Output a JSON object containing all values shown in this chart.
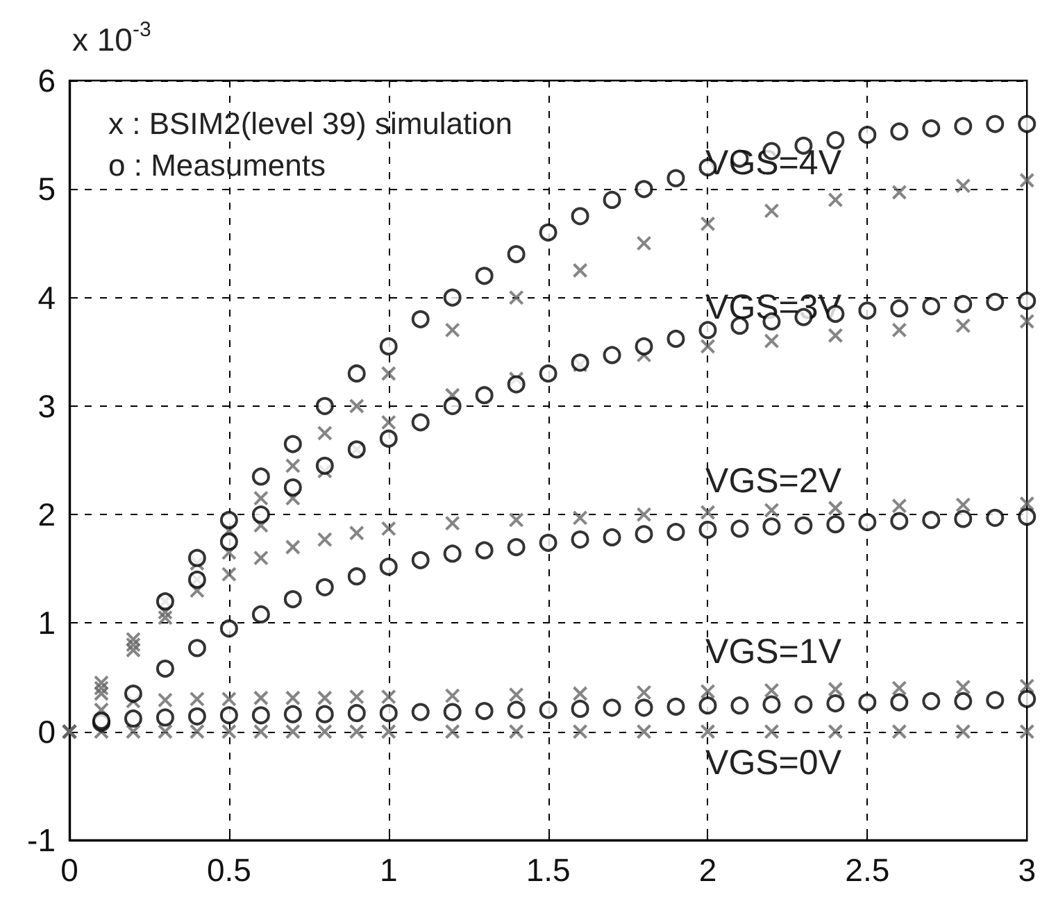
{
  "chart_data": {
    "type": "scatter",
    "xlim": [
      0,
      3
    ],
    "xticks": [
      0,
      0.5,
      1,
      1.5,
      2,
      2.5,
      3
    ],
    "ylim": [
      -1,
      6
    ],
    "yticks": [
      -1,
      0,
      1,
      2,
      3,
      4,
      5,
      6
    ],
    "grid": true,
    "annotations": [
      "x 10$^{-3}$",
      "x : BSIM2(level 39) simulation",
      "o : Measuments",
      "VGS=4V",
      "VGS=3V",
      "VGS=2V",
      "VGS=1V",
      "VGS=0V"
    ],
    "series": [
      {
        "marker": "cross",
        "color": "#666666",
        "x": [
          0,
          0.1,
          0.2,
          0.3,
          0.4,
          0.5,
          0.6,
          0.7,
          0.8,
          0.9,
          1.0,
          1.2,
          1.4,
          1.6,
          1.8,
          2.0,
          2.2,
          2.4,
          2.6,
          2.8,
          3.0
        ],
        "values": [
          0,
          0,
          0,
          0,
          0,
          0,
          0,
          0,
          0,
          0,
          0,
          0,
          0,
          0,
          0,
          0,
          0,
          0,
          0,
          0,
          0
        ]
      },
      {
        "marker": "cross",
        "color": "#666666",
        "x": [
          0,
          0.1,
          0.2,
          0.3,
          0.4,
          0.5,
          0.6,
          0.7,
          0.8,
          0.9,
          1.0,
          1.2,
          1.4,
          1.6,
          1.8,
          2.0,
          2.2,
          2.4,
          2.6,
          2.8,
          3.0
        ],
        "values": [
          0,
          0.2,
          0.28,
          0.29,
          0.3,
          0.3,
          0.31,
          0.31,
          0.31,
          0.32,
          0.32,
          0.33,
          0.34,
          0.35,
          0.36,
          0.37,
          0.38,
          0.39,
          0.4,
          0.41,
          0.42
        ]
      },
      {
        "marker": "cross",
        "color": "#666666",
        "x": [
          0,
          0.1,
          0.2,
          0.3,
          0.4,
          0.5,
          0.6,
          0.7,
          0.8,
          0.9,
          1.0,
          1.2,
          1.4,
          1.6,
          1.8,
          2.0,
          2.2,
          2.4,
          2.6,
          2.8,
          3.0
        ],
        "values": [
          0,
          0.35,
          0.75,
          1.05,
          1.3,
          1.45,
          1.6,
          1.7,
          1.77,
          1.83,
          1.87,
          1.92,
          1.95,
          1.97,
          2.0,
          2.02,
          2.04,
          2.06,
          2.08,
          2.09,
          2.1
        ]
      },
      {
        "marker": "cross",
        "color": "#666666",
        "x": [
          0,
          0.1,
          0.2,
          0.3,
          0.4,
          0.5,
          0.6,
          0.7,
          0.8,
          0.9,
          1.0,
          1.2,
          1.4,
          1.6,
          1.8,
          2.0,
          2.2,
          2.4,
          2.6,
          2.8,
          3.0
        ],
        "values": [
          0,
          0.4,
          0.8,
          1.1,
          1.4,
          1.65,
          1.9,
          2.15,
          2.4,
          2.6,
          2.85,
          3.1,
          3.25,
          3.38,
          3.47,
          3.55,
          3.6,
          3.65,
          3.7,
          3.74,
          3.78
        ]
      },
      {
        "marker": "cross",
        "color": "#666666",
        "x": [
          0,
          0.1,
          0.2,
          0.3,
          0.4,
          0.5,
          0.6,
          0.7,
          0.8,
          0.9,
          1.0,
          1.2,
          1.4,
          1.6,
          1.8,
          2.0,
          2.2,
          2.4,
          2.6,
          2.8,
          3.0
        ],
        "values": [
          0,
          0.45,
          0.85,
          1.2,
          1.55,
          1.85,
          2.15,
          2.45,
          2.75,
          3.0,
          3.3,
          3.7,
          4.0,
          4.25,
          4.5,
          4.68,
          4.8,
          4.9,
          4.97,
          5.03,
          5.08
        ]
      },
      {
        "marker": "circle",
        "color": "#000000",
        "x": [
          0.1,
          0.2,
          0.3,
          0.4,
          0.5,
          0.6,
          0.7,
          0.8,
          0.9,
          1.0,
          1.1,
          1.2,
          1.3,
          1.4,
          1.5,
          1.6,
          1.7,
          1.8,
          1.9,
          2.0,
          2.1,
          2.2,
          2.3,
          2.4,
          2.5,
          2.6,
          2.7,
          2.8,
          2.9,
          3.0
        ],
        "values": [
          0.08,
          0.12,
          0.13,
          0.14,
          0.15,
          0.15,
          0.16,
          0.16,
          0.17,
          0.17,
          0.18,
          0.18,
          0.19,
          0.2,
          0.2,
          0.21,
          0.22,
          0.22,
          0.23,
          0.24,
          0.24,
          0.25,
          0.25,
          0.26,
          0.27,
          0.27,
          0.28,
          0.28,
          0.29,
          0.3
        ]
      },
      {
        "marker": "circle",
        "color": "#000000",
        "x": [
          0.1,
          0.2,
          0.3,
          0.4,
          0.5,
          0.6,
          0.7,
          0.8,
          0.9,
          1.0,
          1.1,
          1.2,
          1.3,
          1.4,
          1.5,
          1.6,
          1.7,
          1.8,
          1.9,
          2.0,
          2.1,
          2.2,
          2.3,
          2.4,
          2.5,
          2.6,
          2.7,
          2.8,
          2.9,
          3.0
        ],
        "values": [
          0.1,
          0.35,
          0.58,
          0.77,
          0.95,
          1.08,
          1.22,
          1.33,
          1.43,
          1.52,
          1.58,
          1.64,
          1.67,
          1.7,
          1.74,
          1.77,
          1.79,
          1.82,
          1.84,
          1.86,
          1.87,
          1.89,
          1.9,
          1.91,
          1.93,
          1.94,
          1.95,
          1.96,
          1.97,
          1.98
        ]
      },
      {
        "marker": "circle",
        "color": "#000000",
        "x": [
          0.4,
          0.5,
          0.6,
          0.7,
          0.8,
          0.9,
          1.0,
          1.1,
          1.2,
          1.3,
          1.4,
          1.5,
          1.6,
          1.7,
          1.8,
          1.9,
          2.0,
          2.1,
          2.2,
          2.3,
          2.4,
          2.5,
          2.6,
          2.7,
          2.8,
          2.9,
          3.0
        ],
        "values": [
          1.4,
          1.75,
          2.0,
          2.25,
          2.45,
          2.6,
          2.7,
          2.85,
          3.0,
          3.1,
          3.2,
          3.3,
          3.4,
          3.47,
          3.55,
          3.62,
          3.7,
          3.74,
          3.78,
          3.82,
          3.85,
          3.88,
          3.9,
          3.92,
          3.94,
          3.96,
          3.97
        ]
      },
      {
        "marker": "circle",
        "color": "#000000",
        "x": [
          0.3,
          0.4,
          0.5,
          0.6,
          0.7,
          0.8,
          0.9,
          1.0,
          1.1,
          1.2,
          1.3,
          1.4,
          1.5,
          1.6,
          1.7,
          1.8,
          1.9,
          2.0,
          2.1,
          2.2,
          2.3,
          2.4,
          2.5,
          2.6,
          2.7,
          2.8,
          2.9,
          3.0
        ],
        "values": [
          1.2,
          1.6,
          1.95,
          2.35,
          2.65,
          3.0,
          3.3,
          3.55,
          3.8,
          4.0,
          4.2,
          4.4,
          4.6,
          4.75,
          4.9,
          5.0,
          5.1,
          5.2,
          5.28,
          5.35,
          5.4,
          5.45,
          5.5,
          5.53,
          5.56,
          5.58,
          5.6,
          5.6
        ]
      }
    ]
  }
}
